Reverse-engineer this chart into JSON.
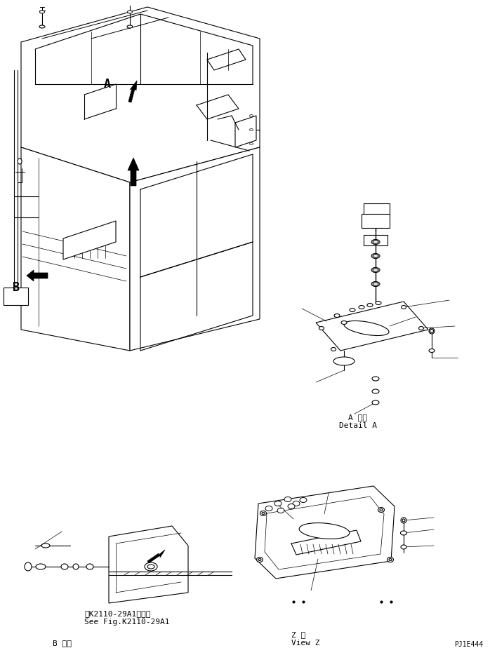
{
  "bg_color": "#ffffff",
  "line_color": "#000000",
  "fig_width": 6.98,
  "fig_height": 9.24,
  "dpi": 100,
  "label_A_detail": "A 詳細\nDetail A",
  "label_B_detail": "B 詳細\nDetail B",
  "label_Z_view": "Z 視\nView Z",
  "label_see_fig": "第K2110-29A1図参照\nSee Fig.K2110-29A1",
  "label_A": "A",
  "label_B": "B",
  "label_pj": "PJ1E444",
  "font_size_label": 8,
  "font_size_small": 7,
  "font_size_pj": 7
}
